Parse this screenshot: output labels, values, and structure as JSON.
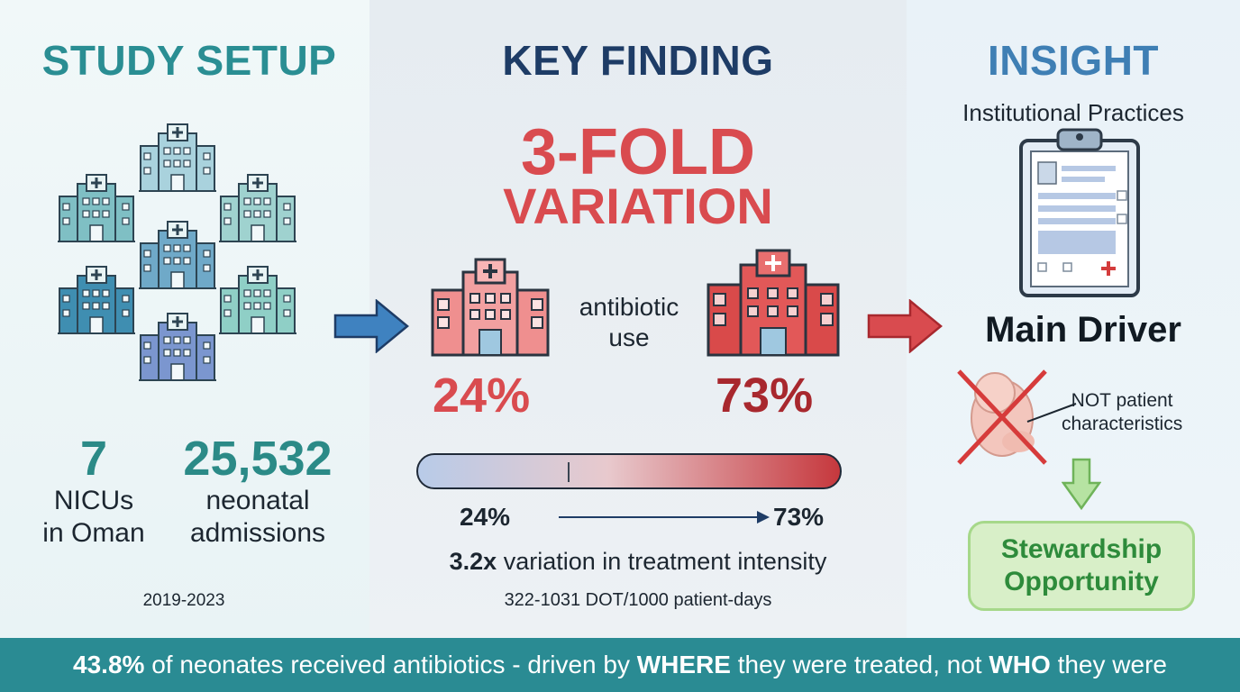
{
  "left": {
    "heading": "STUDY SETUP",
    "nicu_count": "7",
    "nicu_label_line1": "NICUs",
    "nicu_label_line2": "in Oman",
    "admissions_count": "25,532",
    "admissions_label_line1": "neonatal",
    "admissions_label_line2": "admissions",
    "years": "2019-2023",
    "hospital_colors": [
      "#a9d2dd",
      "#7fbfc4",
      "#9fd2cf",
      "#6fa9c8",
      "#3f8eb1",
      "#8fcfc6",
      "#7b96cf"
    ]
  },
  "middle": {
    "heading": "KEY FINDING",
    "headline_line1": "3-FOLD",
    "headline_line2": "VARIATION",
    "center_label_line1": "antibiotic",
    "center_label_line2": "use",
    "low_pct": "24%",
    "high_pct": "73%",
    "range_low": "24%",
    "range_high": "73%",
    "variation_strong": "3.2x",
    "variation_rest": " variation in treatment intensity",
    "dot_range": "322-1031 DOT/1000 patient-days"
  },
  "right": {
    "heading": "INSIGHT",
    "subheading": "Institutional Practices",
    "main_driver": "Main Driver",
    "callout_line1": "NOT patient",
    "callout_line2": "characteristics",
    "box_line1": "Stewardship",
    "box_line2": "Opportunity"
  },
  "footer": {
    "pct": "43.8%",
    "part1": " of neonates received antibiotics - driven by ",
    "where": "WHERE",
    "part2": " they were treated, not ",
    "who": "WHO",
    "part3": " they were"
  },
  "colors": {
    "teal": "#2a8e93",
    "navy": "#1e3c66",
    "red": "#d94b4f",
    "dark_red": "#a8282e",
    "green": "#2e8b3b"
  },
  "icons": [
    "hospital-icon",
    "arrow-right-icon",
    "clipboard-icon",
    "fetus-icon",
    "cross-out-icon",
    "arrow-down-icon"
  ]
}
